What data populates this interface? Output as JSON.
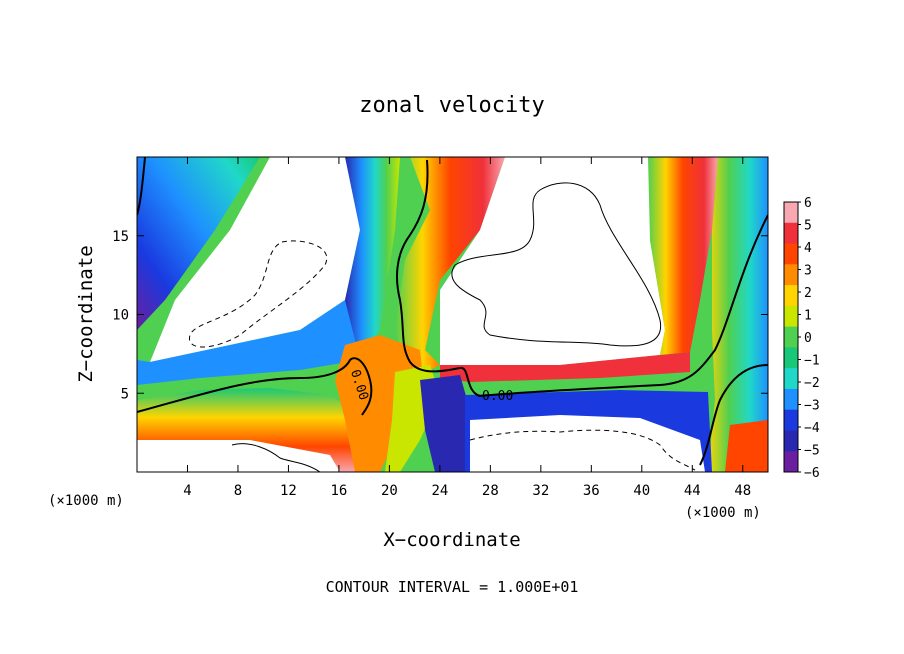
{
  "chart_data": {
    "type": "heatmap",
    "title": "zonal velocity",
    "xlabel": "X−coordinate",
    "ylabel": "Z−coordinate",
    "x_unit_left": "(×1000 m)",
    "x_unit_right": "(×1000 m)",
    "footer": "CONTOUR INTERVAL = 1.000E+01",
    "xlim": [
      0,
      50
    ],
    "ylim": [
      0,
      20
    ],
    "x_ticks": [
      4,
      8,
      12,
      16,
      20,
      24,
      28,
      32,
      36,
      40,
      44,
      48
    ],
    "y_ticks": [
      5,
      10,
      15
    ],
    "colorbar": {
      "range": [
        -6,
        6
      ],
      "labels": [
        6,
        5,
        4,
        3,
        2,
        1,
        0,
        -1,
        -2,
        -3,
        -4,
        -5,
        -6
      ],
      "colors": [
        "#f7a8b0",
        "#f0303a",
        "#ff4500",
        "#ff8c00",
        "#ffd400",
        "#c8e600",
        "#50d050",
        "#18c878",
        "#20d8c8",
        "#1e90ff",
        "#1a3ae0",
        "#2828b0",
        "#6a1ea0"
      ]
    },
    "contour_labels": [
      "0.00",
      "0.00"
    ],
    "grid": false,
    "colors": {
      "positive_max": "#f7a8b0",
      "zero": "#18c830",
      "negative_max": "#6a1ea0",
      "background": "#ffffff"
    }
  }
}
